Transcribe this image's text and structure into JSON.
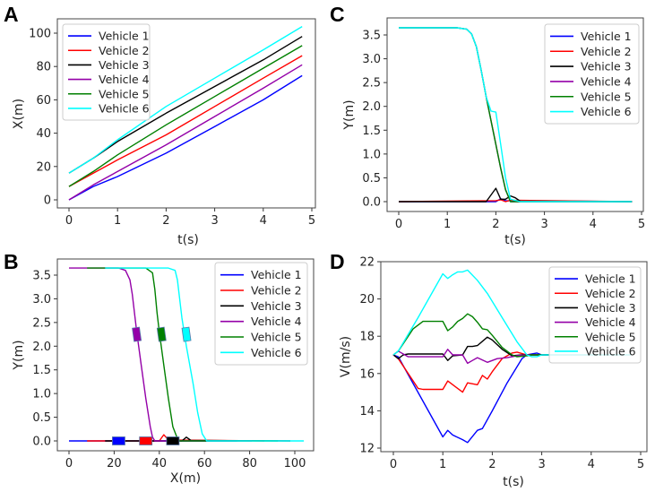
{
  "colors": {
    "Vehicle 1": "#0000ff",
    "Vehicle 2": "#ff0000",
    "Vehicle 3": "#000000",
    "Vehicle 4": "#9400a8",
    "Vehicle 5": "#008000",
    "Vehicle 6": "#00ffff"
  },
  "chart_data": [
    {
      "panel": "A",
      "type": "line",
      "xlabel": "t(s)",
      "ylabel": "X(m)",
      "xlim": [
        -0.3,
        5.15
      ],
      "ylim": [
        -5,
        108
      ],
      "xticks": [
        0,
        1,
        2,
        3,
        4,
        5
      ],
      "yticks": [
        0,
        20,
        40,
        60,
        80,
        100
      ],
      "legend": "top-left",
      "series": [
        {
          "name": "Vehicle 1",
          "x": [
            0,
            0.5,
            1,
            2,
            3,
            4,
            4.8
          ],
          "y": [
            0,
            8,
            14,
            28,
            44,
            60,
            74.5
          ]
        },
        {
          "name": "Vehicle 2",
          "x": [
            0,
            0.5,
            1,
            2,
            3,
            4,
            4.8
          ],
          "y": [
            8,
            16,
            24,
            39,
            56,
            73,
            86.5
          ]
        },
        {
          "name": "Vehicle 3",
          "x": [
            0,
            0.5,
            1,
            2,
            3,
            4,
            4.8
          ],
          "y": [
            16,
            25,
            35,
            52,
            68,
            84,
            98
          ]
        },
        {
          "name": "Vehicle 4",
          "x": [
            0,
            0.5,
            1,
            2,
            3,
            4,
            4.8
          ],
          "y": [
            0,
            9,
            17,
            33,
            50,
            67,
            81
          ]
        },
        {
          "name": "Vehicle 5",
          "x": [
            0,
            0.5,
            1,
            2,
            3,
            4,
            4.8
          ],
          "y": [
            8,
            17,
            27,
            45,
            62,
            79,
            92.5
          ]
        },
        {
          "name": "Vehicle 6",
          "x": [
            0,
            0.5,
            1,
            2,
            3,
            4,
            4.8
          ],
          "y": [
            16,
            25,
            36,
            56,
            73,
            90,
            104
          ]
        }
      ]
    },
    {
      "panel": "B",
      "type": "line",
      "xlabel": "X(m)",
      "ylabel": "Y(m)",
      "xlim": [
        -5,
        108
      ],
      "ylim": [
        -0.2,
        3.85
      ],
      "xticks": [
        0,
        20,
        40,
        60,
        80,
        100
      ],
      "yticks": [
        0.0,
        0.5,
        1.0,
        1.5,
        2.0,
        2.5,
        3.0,
        3.5
      ],
      "ytick_labels": [
        "0.0",
        "0.5",
        "1.0",
        "1.5",
        "2.0",
        "2.5",
        "3.0",
        "3.5"
      ],
      "legend": "top-right",
      "series": [
        {
          "name": "Vehicle 1",
          "x": [
            0,
            74.5
          ],
          "y": [
            0,
            0
          ]
        },
        {
          "name": "Vehicle 2",
          "x": [
            8,
            40,
            42,
            44,
            86.5
          ],
          "y": [
            0,
            0,
            0.13,
            0.02,
            0
          ]
        },
        {
          "name": "Vehicle 3",
          "x": [
            16,
            50,
            52,
            54,
            98
          ],
          "y": [
            0,
            0,
            0.08,
            0.01,
            0
          ]
        },
        {
          "name": "Vehicle 4",
          "x": [
            0,
            22,
            25,
            27,
            28,
            29,
            30,
            32,
            34,
            36,
            37,
            38,
            81
          ],
          "y": [
            3.65,
            3.65,
            3.6,
            3.4,
            3.1,
            2.7,
            2.3,
            1.6,
            0.9,
            0.3,
            0.08,
            0,
            0
          ]
        },
        {
          "name": "Vehicle 5",
          "x": [
            8,
            34,
            37,
            38,
            39,
            40,
            42,
            44,
            46,
            48,
            49,
            92.5
          ],
          "y": [
            3.65,
            3.65,
            3.55,
            3.2,
            2.7,
            2.3,
            1.6,
            0.9,
            0.3,
            0.05,
            0,
            0
          ]
        },
        {
          "name": "Vehicle 6",
          "x": [
            16,
            44,
            47,
            48,
            49,
            50,
            52,
            55,
            57,
            59,
            61,
            104
          ],
          "y": [
            3.65,
            3.65,
            3.6,
            3.4,
            3.0,
            2.6,
            2.0,
            1.2,
            0.6,
            0.15,
            0,
            0
          ]
        }
      ],
      "vehicle_positions": [
        {
          "name": "Vehicle 1",
          "x": 22,
          "y": 0
        },
        {
          "name": "Vehicle 2",
          "x": 34,
          "y": 0
        },
        {
          "name": "Vehicle 3",
          "x": 46,
          "y": 0
        },
        {
          "name": "Vehicle 4",
          "x": 30,
          "y": 2.25
        },
        {
          "name": "Vehicle 5",
          "x": 41,
          "y": 2.25
        },
        {
          "name": "Vehicle 6",
          "x": 52,
          "y": 2.25
        }
      ]
    },
    {
      "panel": "C",
      "type": "line",
      "xlabel": "t(s)",
      "ylabel": "Y(m)",
      "xlim": [
        -0.25,
        5.05
      ],
      "ylim": [
        -0.2,
        3.85
      ],
      "xticks": [
        0,
        1,
        2,
        3,
        4,
        5
      ],
      "yticks": [
        0.0,
        0.5,
        1.0,
        1.5,
        2.0,
        2.5,
        3.0,
        3.5
      ],
      "ytick_labels": [
        "0.0",
        "0.5",
        "1.0",
        "1.5",
        "2.0",
        "2.5",
        "3.0",
        "3.5"
      ],
      "legend": "top-right",
      "series": [
        {
          "name": "Vehicle 1",
          "x": [
            0,
            2.0,
            2.1,
            2.2,
            4.8
          ],
          "y": [
            0,
            0,
            0.06,
            0.02,
            0
          ]
        },
        {
          "name": "Vehicle 2",
          "x": [
            0,
            2.0,
            2.1,
            2.2,
            2.3,
            4.8
          ],
          "y": [
            0,
            0.02,
            0.04,
            0,
            0.03,
            0
          ]
        },
        {
          "name": "Vehicle 3",
          "x": [
            0,
            1.8,
            2.0,
            2.1,
            2.2,
            2.3,
            2.4,
            2.5,
            4.8
          ],
          "y": [
            0,
            0,
            0.28,
            0.05,
            0.05,
            0.12,
            0.08,
            0.01,
            0
          ]
        },
        {
          "name": "Vehicle 4",
          "x": [
            0,
            1.2,
            1.4,
            1.5,
            1.6,
            1.7,
            1.8,
            1.9,
            2.0,
            2.1,
            2.2,
            2.3,
            4.8
          ],
          "y": [
            3.65,
            3.65,
            3.62,
            3.52,
            3.25,
            2.75,
            2.2,
            1.7,
            1.2,
            0.7,
            0.25,
            0,
            0
          ]
        },
        {
          "name": "Vehicle 5",
          "x": [
            0,
            1.2,
            1.4,
            1.5,
            1.6,
            1.7,
            1.8,
            1.9,
            2.0,
            2.1,
            2.2,
            2.3,
            4.8
          ],
          "y": [
            3.65,
            3.65,
            3.62,
            3.52,
            3.25,
            2.75,
            2.2,
            1.7,
            1.2,
            0.7,
            0.25,
            0,
            0
          ]
        },
        {
          "name": "Vehicle 6",
          "x": [
            0,
            1.2,
            1.4,
            1.5,
            1.6,
            1.7,
            1.8,
            1.9,
            2.0,
            2.1,
            2.2,
            2.3,
            2.5,
            4.8
          ],
          "y": [
            3.65,
            3.65,
            3.62,
            3.52,
            3.25,
            2.75,
            2.2,
            1.9,
            1.88,
            1.2,
            0.5,
            0.05,
            0,
            0
          ]
        }
      ]
    },
    {
      "panel": "D",
      "type": "line",
      "xlabel": "t(s)",
      "ylabel": "V(m/s)",
      "xlim": [
        -0.25,
        5.05
      ],
      "ylim": [
        11.9,
        22
      ],
      "xticks": [
        0,
        1,
        2,
        3,
        4,
        5
      ],
      "yticks": [
        12,
        14,
        16,
        18,
        20,
        22
      ],
      "legend": "top-right",
      "series": [
        {
          "name": "Vehicle 1",
          "x": [
            0,
            0.1,
            1.0,
            1.1,
            1.2,
            1.4,
            1.5,
            1.7,
            1.8,
            2.0,
            2.3,
            2.6,
            2.7,
            2.9,
            3.0,
            4.8
          ],
          "y": [
            17,
            16.9,
            12.6,
            12.95,
            12.7,
            12.45,
            12.3,
            12.95,
            13.05,
            14,
            15.5,
            16.8,
            17,
            17.1,
            17,
            17
          ]
        },
        {
          "name": "Vehicle 2",
          "x": [
            0,
            0.1,
            0.5,
            0.6,
            1.0,
            1.1,
            1.4,
            1.5,
            1.7,
            1.8,
            1.9,
            2.0,
            2.2,
            2.4,
            2.5,
            2.7,
            4.8
          ],
          "y": [
            17,
            16.8,
            15.2,
            15.15,
            15.15,
            15.6,
            15.0,
            15.5,
            15.4,
            15.9,
            15.7,
            16.1,
            16.8,
            17.1,
            17.15,
            17,
            17
          ]
        },
        {
          "name": "Vehicle 3",
          "x": [
            0,
            0.1,
            0.2,
            0.3,
            1.0,
            1.1,
            1.2,
            1.4,
            1.5,
            1.6,
            1.7,
            1.9,
            2.0,
            2.2,
            2.4,
            2.6,
            4.8
          ],
          "y": [
            17,
            16.8,
            17,
            17.05,
            17.05,
            16.7,
            16.95,
            17,
            17.45,
            17.45,
            17.5,
            17.95,
            17.8,
            17.3,
            16.95,
            17,
            17
          ]
        },
        {
          "name": "Vehicle 4",
          "x": [
            0,
            0.1,
            0.3,
            1.0,
            1.1,
            1.2,
            1.4,
            1.5,
            1.6,
            1.7,
            1.9,
            2.1,
            2.3,
            2.5,
            2.7,
            4.8
          ],
          "y": [
            17,
            17.2,
            16.9,
            16.9,
            17.3,
            17.0,
            17.0,
            16.55,
            16.7,
            16.85,
            16.6,
            16.8,
            16.85,
            16.95,
            17,
            17
          ]
        },
        {
          "name": "Vehicle 5",
          "x": [
            0,
            0.1,
            0.4,
            0.6,
            1.0,
            1.1,
            1.2,
            1.3,
            1.4,
            1.5,
            1.6,
            1.7,
            1.8,
            1.9,
            2.0,
            2.2,
            2.4,
            2.5,
            2.7,
            2.8,
            4.8
          ],
          "y": [
            17,
            17.2,
            18.4,
            18.8,
            18.8,
            18.3,
            18.5,
            18.8,
            18.95,
            19.2,
            19.05,
            18.75,
            18.4,
            18.35,
            18.05,
            17.4,
            17.0,
            16.9,
            16.95,
            17,
            17
          ]
        },
        {
          "name": "Vehicle 6",
          "x": [
            0,
            0.1,
            0.5,
            1.0,
            1.1,
            1.2,
            1.3,
            1.4,
            1.5,
            1.7,
            1.9,
            2.2,
            2.5,
            2.7,
            2.8,
            2.9,
            3.0,
            4.8
          ],
          "y": [
            17,
            17.2,
            19,
            21.35,
            21.1,
            21.3,
            21.45,
            21.45,
            21.55,
            21.0,
            20.3,
            19.0,
            17.7,
            17.0,
            16.9,
            16.9,
            17,
            17
          ]
        }
      ]
    }
  ]
}
